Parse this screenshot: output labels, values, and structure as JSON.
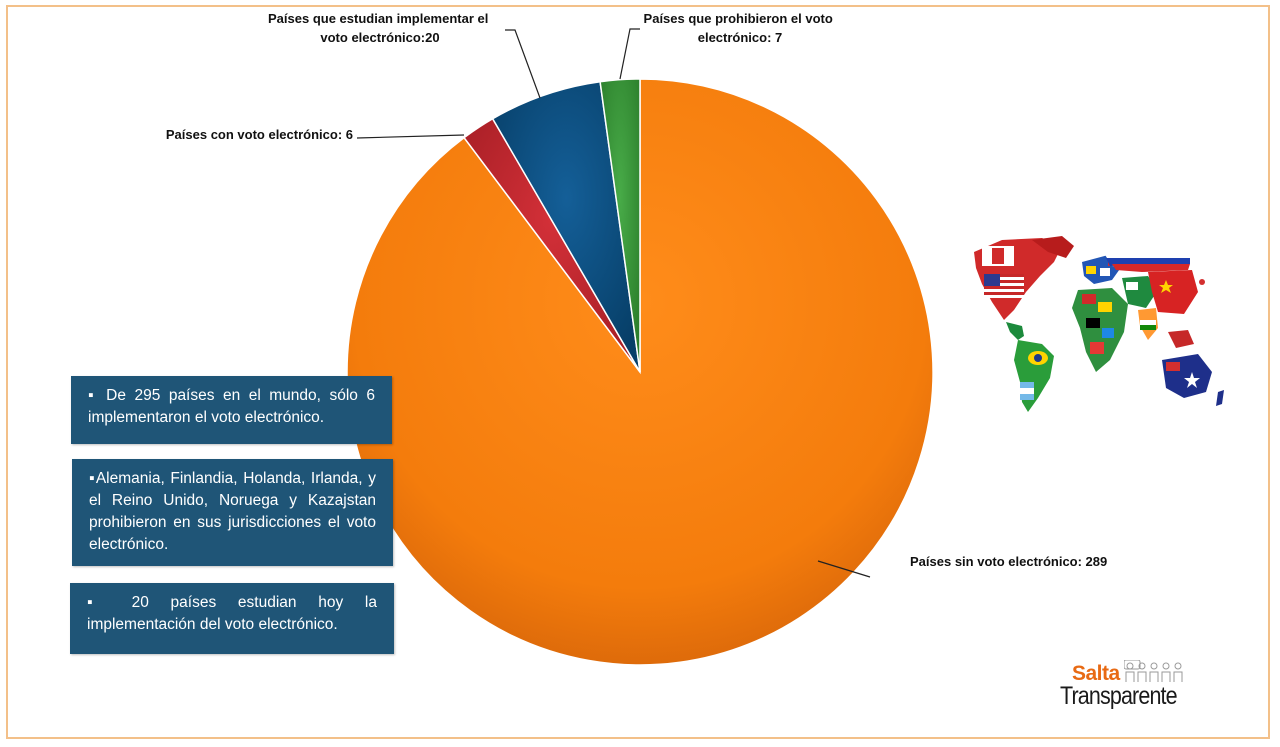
{
  "chart_data": {
    "type": "pie",
    "title": "",
    "slices": [
      {
        "label": "Países sin voto electrónico: 289",
        "value": 289,
        "color": "#f47c0c"
      },
      {
        "label": "Países con voto electrónico: 6",
        "value": 6,
        "color": "#c1272d"
      },
      {
        "label": "Países que estudian implementar el voto electrónico:20",
        "value": 20,
        "color": "#0b5386"
      },
      {
        "label": "Países que prohibieron el voto electrónico: 7",
        "value": 7,
        "color": "#3a9a3a"
      }
    ],
    "label_lines": {
      "sin": [
        "Países sin voto electrónico: 289"
      ],
      "con": [
        "Países con voto electrónico: 6"
      ],
      "estudian": [
        "Países que estudian implementar el",
        "voto electrónico:20"
      ],
      "prohibieron": [
        "Países que prohibieron el voto",
        "electrónico: 7"
      ]
    }
  },
  "info_boxes": {
    "box1": "▪ De 295 países en el mundo, sólo 6 implementaron el voto electrónico.",
    "box2": "▪Alemania, Finlandia, Holanda, Irlanda, y el Reino Unido, Noruega y Kazajstan prohibieron en sus jurisdicciones el voto electrónico.",
    "box3": "▪ 20 países estudian hoy la implementación del voto electrónico."
  },
  "logo": {
    "line1": "Salta",
    "line2": "Transparente"
  },
  "colors": {
    "frame": "#f3c089",
    "box_bg": "#1f5577",
    "logo_orange": "#e86a14"
  },
  "map_icon": "world-flags-map-icon"
}
